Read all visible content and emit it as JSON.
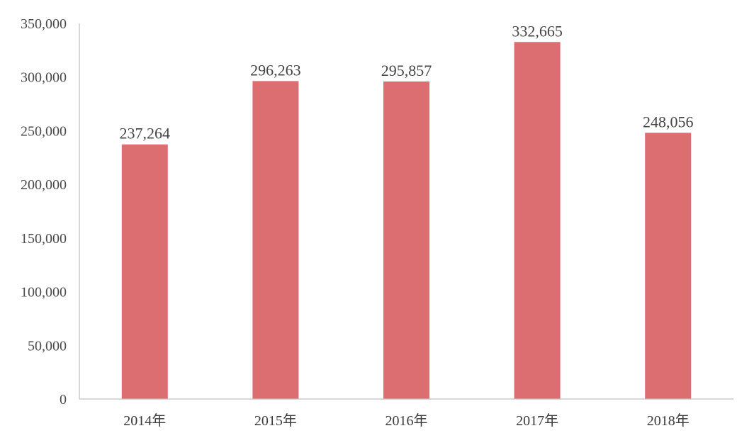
{
  "colors": {
    "bar": "#dc6e71",
    "axis": "#bfbfbf",
    "text": "#444444"
  },
  "chart_data": {
    "type": "bar",
    "title": "",
    "xlabel": "",
    "ylabel": "",
    "categories": [
      "2014年",
      "2015年",
      "2016年",
      "2017年",
      "2018年"
    ],
    "values": [
      237264,
      296263,
      295857,
      332665,
      248056
    ],
    "value_labels": [
      "237,264",
      "296,263",
      "295,857",
      "332,665",
      "248,056"
    ],
    "ylim": [
      0,
      350000
    ],
    "yticks": [
      0,
      50000,
      100000,
      150000,
      200000,
      250000,
      300000,
      350000
    ],
    "ytick_labels": [
      "0",
      "50,000",
      "100,000",
      "150,000",
      "200,000",
      "250,000",
      "300,000",
      "350,000"
    ],
    "grid": false,
    "legend": "none"
  }
}
